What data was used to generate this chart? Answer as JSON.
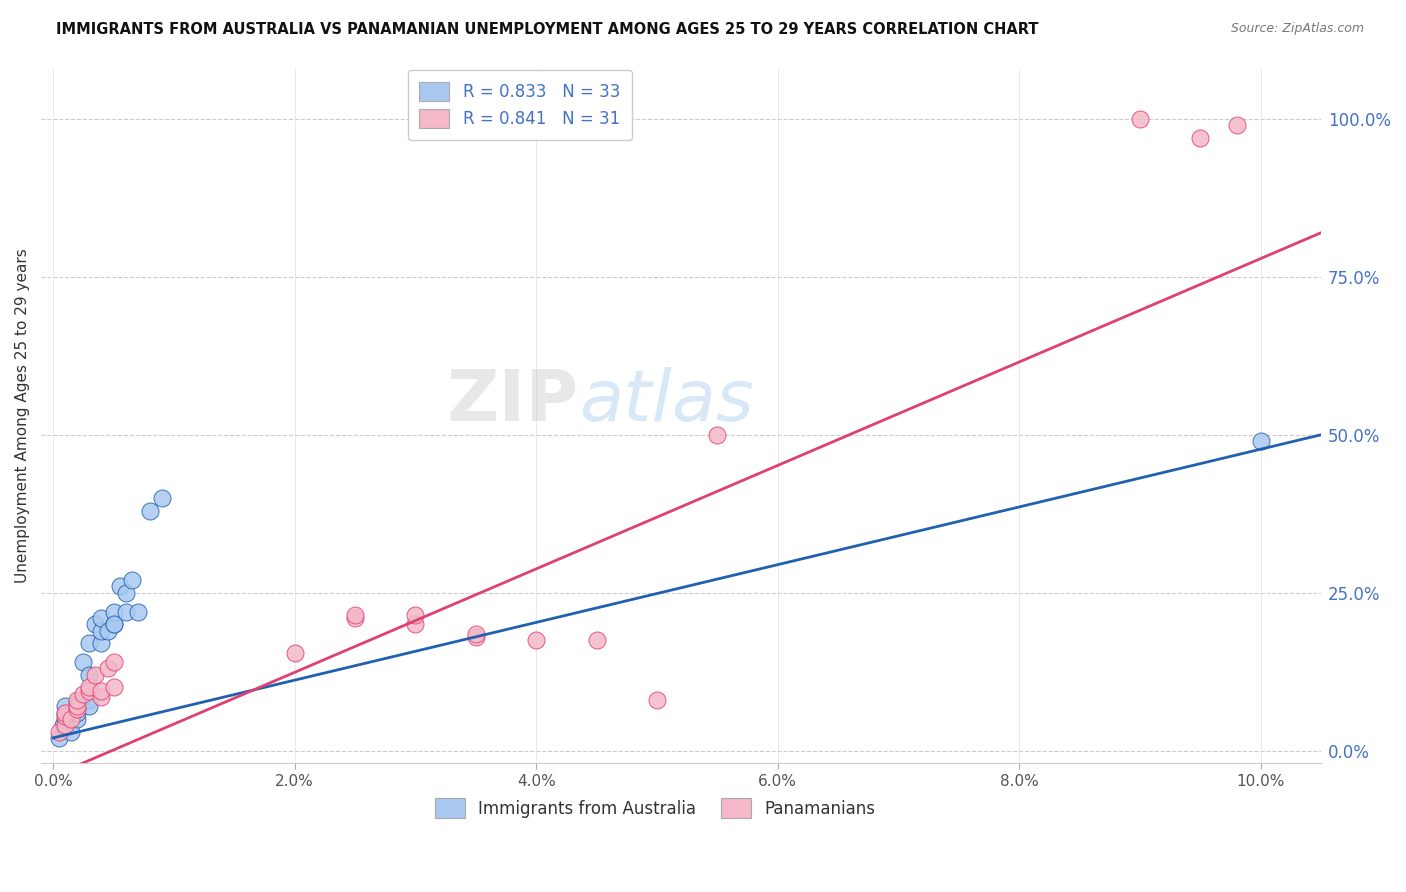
{
  "title": "IMMIGRANTS FROM AUSTRALIA VS PANAMANIAN UNEMPLOYMENT AMONG AGES 25 TO 29 YEARS CORRELATION CHART",
  "source": "Source: ZipAtlas.com",
  "ylabel": "Unemployment Among Ages 25 to 29 years",
  "x_tick_labels": [
    "0.0%",
    "2.0%",
    "4.0%",
    "6.0%",
    "8.0%",
    "10.0%"
  ],
  "x_tick_vals": [
    0.0,
    0.02,
    0.04,
    0.06,
    0.08,
    0.1
  ],
  "y_tick_labels": [
    "0.0%",
    "25.0%",
    "50.0%",
    "75.0%",
    "100.0%"
  ],
  "y_tick_vals": [
    0.0,
    0.25,
    0.5,
    0.75,
    1.0
  ],
  "xlim": [
    -0.001,
    0.105
  ],
  "ylim": [
    -0.02,
    1.08
  ],
  "legend_labels": [
    "Immigrants from Australia",
    "Panamanians"
  ],
  "legend_R": [
    "0.833",
    "0.841"
  ],
  "legend_N": [
    "33",
    "31"
  ],
  "blue_color": "#A8C8F0",
  "pink_color": "#F4B8C8",
  "blue_line_color": "#2060B0",
  "pink_line_color": "#E04070",
  "blue_scatter": [
    [
      0.0005,
      0.02
    ],
    [
      0.0008,
      0.04
    ],
    [
      0.001,
      0.035
    ],
    [
      0.001,
      0.05
    ],
    [
      0.001,
      0.06
    ],
    [
      0.001,
      0.07
    ],
    [
      0.0015,
      0.03
    ],
    [
      0.0015,
      0.055
    ],
    [
      0.002,
      0.05
    ],
    [
      0.002,
      0.06
    ],
    [
      0.002,
      0.065
    ],
    [
      0.002,
      0.075
    ],
    [
      0.0025,
      0.14
    ],
    [
      0.003,
      0.12
    ],
    [
      0.003,
      0.08
    ],
    [
      0.003,
      0.07
    ],
    [
      0.003,
      0.17
    ],
    [
      0.0035,
      0.2
    ],
    [
      0.004,
      0.17
    ],
    [
      0.004,
      0.19
    ],
    [
      0.004,
      0.21
    ],
    [
      0.0045,
      0.19
    ],
    [
      0.005,
      0.2
    ],
    [
      0.005,
      0.22
    ],
    [
      0.005,
      0.2
    ],
    [
      0.0055,
      0.26
    ],
    [
      0.006,
      0.25
    ],
    [
      0.006,
      0.22
    ],
    [
      0.0065,
      0.27
    ],
    [
      0.007,
      0.22
    ],
    [
      0.008,
      0.38
    ],
    [
      0.009,
      0.4
    ],
    [
      0.1,
      0.49
    ]
  ],
  "pink_scatter": [
    [
      0.0005,
      0.03
    ],
    [
      0.001,
      0.04
    ],
    [
      0.001,
      0.055
    ],
    [
      0.001,
      0.06
    ],
    [
      0.0015,
      0.05
    ],
    [
      0.002,
      0.065
    ],
    [
      0.002,
      0.07
    ],
    [
      0.002,
      0.08
    ],
    [
      0.0025,
      0.09
    ],
    [
      0.003,
      0.095
    ],
    [
      0.003,
      0.1
    ],
    [
      0.0035,
      0.12
    ],
    [
      0.004,
      0.085
    ],
    [
      0.004,
      0.095
    ],
    [
      0.0045,
      0.13
    ],
    [
      0.005,
      0.1
    ],
    [
      0.005,
      0.14
    ],
    [
      0.02,
      0.155
    ],
    [
      0.025,
      0.21
    ],
    [
      0.025,
      0.215
    ],
    [
      0.03,
      0.2
    ],
    [
      0.03,
      0.215
    ],
    [
      0.035,
      0.18
    ],
    [
      0.035,
      0.185
    ],
    [
      0.04,
      0.175
    ],
    [
      0.045,
      0.175
    ],
    [
      0.05,
      0.08
    ],
    [
      0.055,
      0.5
    ],
    [
      0.09,
      1.0
    ],
    [
      0.095,
      0.97
    ],
    [
      0.098,
      0.99
    ]
  ],
  "watermark_zip": "ZIP",
  "watermark_atlas": "atlas",
  "figsize": [
    14.06,
    8.92
  ],
  "dpi": 100
}
